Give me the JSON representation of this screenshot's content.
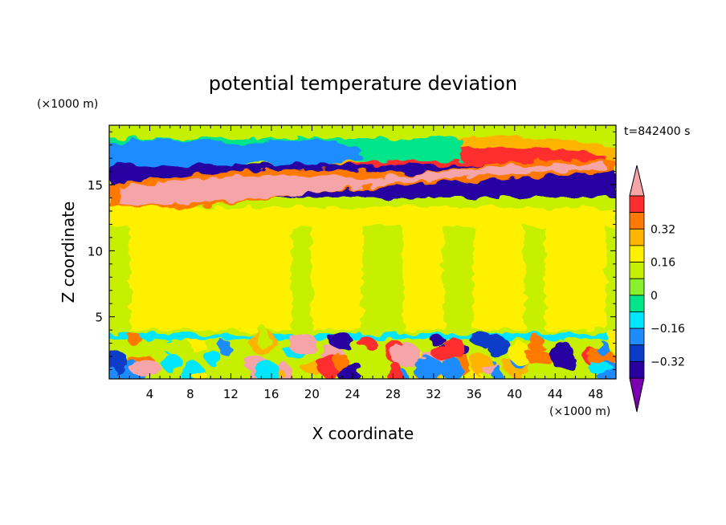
{
  "chart_data": {
    "type": "heatmap",
    "title": "potential temperature deviation",
    "xlabel": "X coordinate",
    "ylabel": "Z coordinate",
    "x_unit": "(×1000 m)",
    "y_unit": "(×1000 m)",
    "time_label": "t=842400 s",
    "xlim": [
      0,
      50
    ],
    "ylim": [
      0.3,
      19.5
    ],
    "x_ticks": [
      4,
      8,
      12,
      16,
      20,
      24,
      28,
      32,
      36,
      40,
      44,
      48
    ],
    "y_ticks": [
      5,
      10,
      15
    ],
    "colorbar": {
      "levels": [
        -0.48,
        -0.4,
        -0.32,
        -0.24,
        -0.16,
        -0.08,
        0,
        0.08,
        0.16,
        0.24,
        0.32,
        0.4,
        0.48
      ],
      "tick_labels": [
        "0.32",
        "0.16",
        "0",
        "−0.16",
        "−0.32"
      ],
      "tick_values": [
        0.32,
        0.16,
        0,
        -0.16,
        -0.32
      ],
      "colors": [
        "#7a00b0",
        "#2800a0",
        "#0a3cc8",
        "#1e8cff",
        "#00e6ff",
        "#00e58a",
        "#88f02c",
        "#c6f000",
        "#fff000",
        "#ffb400",
        "#ff7800",
        "#ff2d2d",
        "#f5a4a8"
      ],
      "extend": "both"
    },
    "layers": [
      {
        "description_value": "background",
        "value": 0.04
      },
      {
        "value": 0.12,
        "z_range": [
          3.6,
          13.0
        ]
      },
      {
        "value": -0.45,
        "z_range": [
          14.0,
          16.5
        ],
        "x_range": [
          0,
          50
        ]
      },
      {
        "value": 0.5,
        "z_range": [
          13.0,
          15.5
        ]
      },
      {
        "value": -0.1,
        "z_range": [
          16.5,
          19.5
        ]
      }
    ]
  }
}
